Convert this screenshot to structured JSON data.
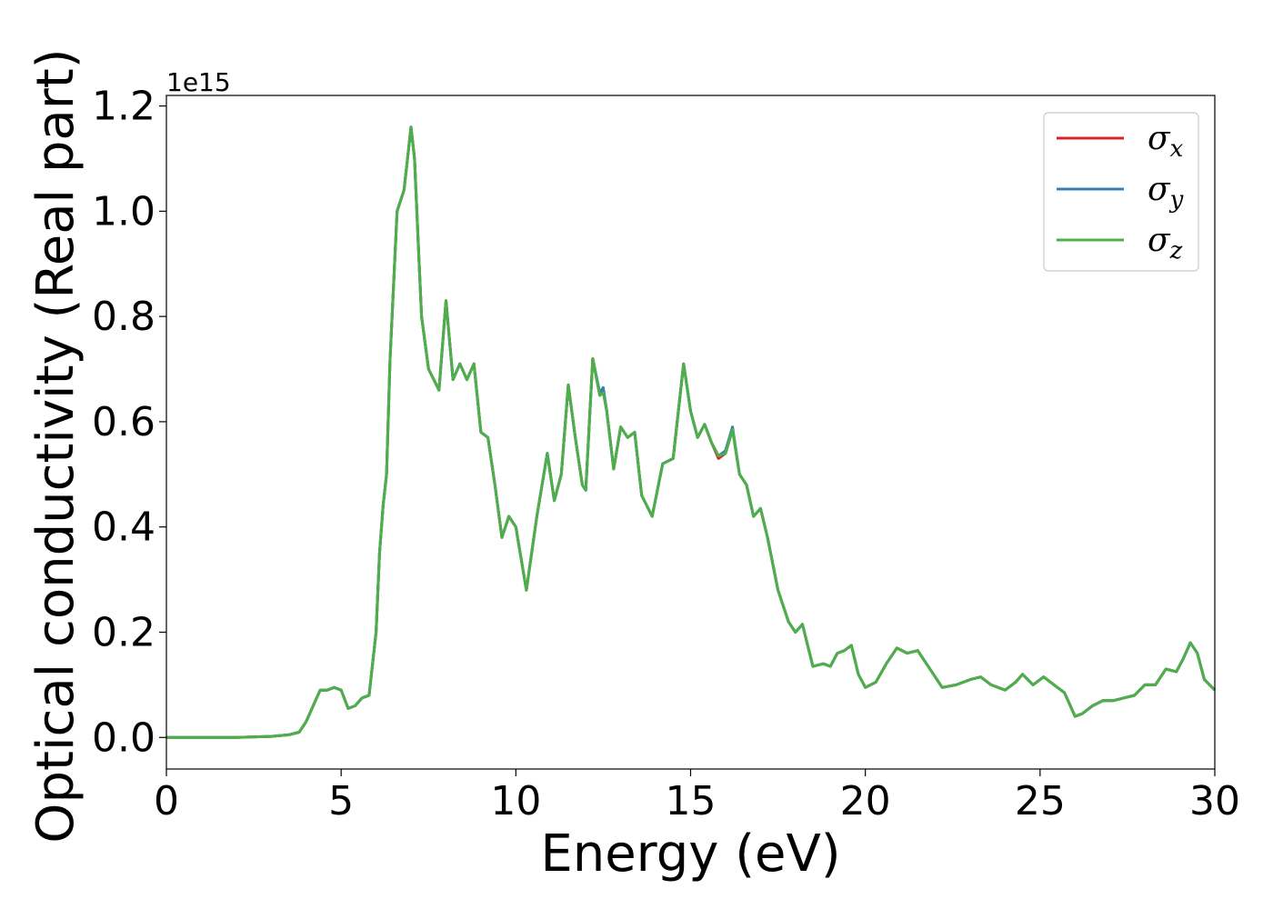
{
  "chart_data": {
    "type": "line",
    "title": "",
    "xlabel": "Energy (eV)",
    "ylabel": "Optical conductivity (Real part)",
    "y_offset_label": "1e15",
    "xlim": [
      0,
      30
    ],
    "ylim": [
      -0.06,
      1.22
    ],
    "x_ticks": [
      0,
      5,
      10,
      15,
      20,
      25,
      30
    ],
    "x_tick_labels": [
      "0",
      "5",
      "10",
      "15",
      "20",
      "25",
      "30"
    ],
    "y_ticks": [
      0.0,
      0.2,
      0.4,
      0.6,
      0.8,
      1.0,
      1.2
    ],
    "y_tick_labels": [
      "0.0",
      "0.2",
      "0.4",
      "0.6",
      "0.8",
      "1.0",
      "1.2"
    ],
    "grid": false,
    "legend_position": "top-right",
    "series": [
      {
        "name": "σx",
        "label_main": "σ",
        "label_sub": "x",
        "color": "#d62728",
        "x": [
          0,
          1,
          2,
          3,
          3.5,
          3.8,
          4.0,
          4.2,
          4.4,
          4.6,
          4.8,
          5.0,
          5.2,
          5.4,
          5.6,
          5.8,
          6.0,
          6.1,
          6.2,
          6.3,
          6.4,
          6.6,
          6.8,
          6.9,
          7.0,
          7.1,
          7.2,
          7.3,
          7.5,
          7.8,
          8.0,
          8.2,
          8.4,
          8.6,
          8.8,
          9.0,
          9.2,
          9.4,
          9.6,
          9.8,
          10.0,
          10.3,
          10.6,
          10.9,
          11.1,
          11.3,
          11.5,
          11.7,
          11.9,
          12.0,
          12.2,
          12.4,
          12.5,
          12.6,
          12.8,
          13.0,
          13.2,
          13.4,
          13.6,
          13.9,
          14.2,
          14.5,
          14.8,
          15.0,
          15.2,
          15.4,
          15.6,
          15.8,
          16.0,
          16.2,
          16.4,
          16.6,
          16.8,
          17.0,
          17.2,
          17.5,
          17.8,
          18.0,
          18.2,
          18.5,
          18.8,
          19.0,
          19.2,
          19.4,
          19.6,
          19.8,
          20.0,
          20.3,
          20.6,
          20.9,
          21.2,
          21.5,
          21.8,
          22.2,
          22.6,
          23.0,
          23.3,
          23.6,
          24.0,
          24.3,
          24.5,
          24.8,
          25.1,
          25.4,
          25.7,
          26.0,
          26.2,
          26.5,
          26.8,
          27.1,
          27.4,
          27.7,
          28.0,
          28.3,
          28.6,
          28.9,
          29.1,
          29.3,
          29.5,
          29.7,
          30.0
        ],
        "values": [
          0.0,
          0.0,
          0.0,
          0.002,
          0.005,
          0.01,
          0.03,
          0.06,
          0.09,
          0.09,
          0.095,
          0.09,
          0.055,
          0.06,
          0.075,
          0.08,
          0.2,
          0.35,
          0.44,
          0.5,
          0.72,
          1.0,
          1.04,
          1.1,
          1.16,
          1.1,
          0.95,
          0.8,
          0.7,
          0.66,
          0.83,
          0.68,
          0.71,
          0.68,
          0.71,
          0.58,
          0.57,
          0.48,
          0.38,
          0.42,
          0.4,
          0.28,
          0.42,
          0.54,
          0.45,
          0.5,
          0.67,
          0.57,
          0.48,
          0.47,
          0.72,
          0.65,
          0.66,
          0.62,
          0.51,
          0.59,
          0.57,
          0.58,
          0.46,
          0.42,
          0.52,
          0.53,
          0.71,
          0.62,
          0.57,
          0.595,
          0.56,
          0.53,
          0.54,
          0.585,
          0.5,
          0.48,
          0.42,
          0.435,
          0.38,
          0.28,
          0.22,
          0.2,
          0.215,
          0.135,
          0.14,
          0.135,
          0.16,
          0.165,
          0.175,
          0.12,
          0.095,
          0.105,
          0.14,
          0.17,
          0.16,
          0.165,
          0.135,
          0.095,
          0.1,
          0.11,
          0.115,
          0.1,
          0.09,
          0.105,
          0.12,
          0.1,
          0.115,
          0.1,
          0.085,
          0.04,
          0.045,
          0.06,
          0.07,
          0.07,
          0.075,
          0.08,
          0.1,
          0.1,
          0.13,
          0.125,
          0.15,
          0.18,
          0.16,
          0.11,
          0.09
        ]
      },
      {
        "name": "σy",
        "label_main": "σ",
        "label_sub": "y",
        "color": "#377eb8",
        "x": [
          0,
          1,
          2,
          3,
          3.5,
          3.8,
          4.0,
          4.2,
          4.4,
          4.6,
          4.8,
          5.0,
          5.2,
          5.4,
          5.6,
          5.8,
          6.0,
          6.1,
          6.2,
          6.3,
          6.4,
          6.6,
          6.8,
          6.9,
          7.0,
          7.1,
          7.2,
          7.3,
          7.5,
          7.8,
          8.0,
          8.2,
          8.4,
          8.6,
          8.8,
          9.0,
          9.2,
          9.4,
          9.6,
          9.8,
          10.0,
          10.3,
          10.6,
          10.9,
          11.1,
          11.3,
          11.5,
          11.7,
          11.9,
          12.0,
          12.2,
          12.4,
          12.5,
          12.6,
          12.8,
          13.0,
          13.2,
          13.4,
          13.6,
          13.9,
          14.2,
          14.5,
          14.8,
          15.0,
          15.2,
          15.4,
          15.6,
          15.8,
          16.0,
          16.2,
          16.4,
          16.6,
          16.8,
          17.0,
          17.2,
          17.5,
          17.8,
          18.0,
          18.2,
          18.5,
          18.8,
          19.0,
          19.2,
          19.4,
          19.6,
          19.8,
          20.0,
          20.3,
          20.6,
          20.9,
          21.2,
          21.5,
          21.8,
          22.2,
          22.6,
          23.0,
          23.3,
          23.6,
          24.0,
          24.3,
          24.5,
          24.8,
          25.1,
          25.4,
          25.7,
          26.0,
          26.2,
          26.5,
          26.8,
          27.1,
          27.4,
          27.7,
          28.0,
          28.3,
          28.6,
          28.9,
          29.1,
          29.3,
          29.5,
          29.7,
          30.0
        ],
        "values": [
          0.0,
          0.0,
          0.0,
          0.002,
          0.005,
          0.01,
          0.03,
          0.06,
          0.09,
          0.09,
          0.095,
          0.09,
          0.055,
          0.06,
          0.075,
          0.08,
          0.2,
          0.35,
          0.44,
          0.5,
          0.72,
          1.0,
          1.04,
          1.1,
          1.16,
          1.1,
          0.95,
          0.8,
          0.7,
          0.66,
          0.83,
          0.68,
          0.71,
          0.68,
          0.71,
          0.58,
          0.57,
          0.48,
          0.38,
          0.42,
          0.4,
          0.28,
          0.42,
          0.54,
          0.45,
          0.5,
          0.67,
          0.57,
          0.48,
          0.47,
          0.72,
          0.655,
          0.665,
          0.62,
          0.51,
          0.59,
          0.57,
          0.58,
          0.46,
          0.42,
          0.52,
          0.53,
          0.71,
          0.62,
          0.57,
          0.595,
          0.56,
          0.535,
          0.545,
          0.59,
          0.5,
          0.48,
          0.42,
          0.435,
          0.38,
          0.28,
          0.22,
          0.2,
          0.215,
          0.135,
          0.14,
          0.135,
          0.16,
          0.165,
          0.175,
          0.12,
          0.095,
          0.105,
          0.14,
          0.17,
          0.16,
          0.165,
          0.135,
          0.095,
          0.1,
          0.11,
          0.115,
          0.1,
          0.09,
          0.105,
          0.12,
          0.1,
          0.115,
          0.1,
          0.085,
          0.04,
          0.045,
          0.06,
          0.07,
          0.07,
          0.075,
          0.08,
          0.1,
          0.1,
          0.13,
          0.125,
          0.15,
          0.18,
          0.16,
          0.11,
          0.09
        ]
      },
      {
        "name": "σz",
        "label_main": "σ",
        "label_sub": "z",
        "color": "#4daf4a",
        "x": [
          0,
          1,
          2,
          3,
          3.5,
          3.8,
          4.0,
          4.2,
          4.4,
          4.6,
          4.8,
          5.0,
          5.2,
          5.4,
          5.6,
          5.8,
          6.0,
          6.1,
          6.2,
          6.3,
          6.4,
          6.6,
          6.8,
          6.9,
          7.0,
          7.1,
          7.2,
          7.3,
          7.5,
          7.8,
          8.0,
          8.2,
          8.4,
          8.6,
          8.8,
          9.0,
          9.2,
          9.4,
          9.6,
          9.8,
          10.0,
          10.3,
          10.6,
          10.9,
          11.1,
          11.3,
          11.5,
          11.7,
          11.9,
          12.0,
          12.2,
          12.4,
          12.5,
          12.6,
          12.8,
          13.0,
          13.2,
          13.4,
          13.6,
          13.9,
          14.2,
          14.5,
          14.8,
          15.0,
          15.2,
          15.4,
          15.6,
          15.8,
          16.0,
          16.2,
          16.4,
          16.6,
          16.8,
          17.0,
          17.2,
          17.5,
          17.8,
          18.0,
          18.2,
          18.5,
          18.8,
          19.0,
          19.2,
          19.4,
          19.6,
          19.8,
          20.0,
          20.3,
          20.6,
          20.9,
          21.2,
          21.5,
          21.8,
          22.2,
          22.6,
          23.0,
          23.3,
          23.6,
          24.0,
          24.3,
          24.5,
          24.8,
          25.1,
          25.4,
          25.7,
          26.0,
          26.2,
          26.5,
          26.8,
          27.1,
          27.4,
          27.7,
          28.0,
          28.3,
          28.6,
          28.9,
          29.1,
          29.3,
          29.5,
          29.7,
          30.0
        ],
        "values": [
          0.0,
          0.0,
          0.0,
          0.002,
          0.005,
          0.01,
          0.03,
          0.06,
          0.09,
          0.09,
          0.095,
          0.09,
          0.055,
          0.06,
          0.075,
          0.08,
          0.2,
          0.35,
          0.44,
          0.5,
          0.72,
          1.0,
          1.04,
          1.1,
          1.16,
          1.1,
          0.95,
          0.8,
          0.7,
          0.66,
          0.83,
          0.68,
          0.71,
          0.68,
          0.71,
          0.58,
          0.57,
          0.48,
          0.38,
          0.42,
          0.4,
          0.28,
          0.42,
          0.54,
          0.45,
          0.5,
          0.67,
          0.57,
          0.48,
          0.47,
          0.72,
          0.65,
          0.655,
          0.62,
          0.51,
          0.59,
          0.57,
          0.58,
          0.46,
          0.42,
          0.52,
          0.53,
          0.71,
          0.62,
          0.57,
          0.595,
          0.56,
          0.535,
          0.54,
          0.585,
          0.5,
          0.48,
          0.42,
          0.435,
          0.38,
          0.28,
          0.22,
          0.2,
          0.215,
          0.135,
          0.14,
          0.135,
          0.16,
          0.165,
          0.175,
          0.12,
          0.095,
          0.105,
          0.14,
          0.17,
          0.16,
          0.165,
          0.135,
          0.095,
          0.1,
          0.11,
          0.115,
          0.1,
          0.09,
          0.105,
          0.12,
          0.1,
          0.115,
          0.1,
          0.085,
          0.04,
          0.045,
          0.06,
          0.07,
          0.07,
          0.075,
          0.08,
          0.1,
          0.1,
          0.13,
          0.125,
          0.15,
          0.18,
          0.16,
          0.11,
          0.09
        ]
      }
    ]
  }
}
